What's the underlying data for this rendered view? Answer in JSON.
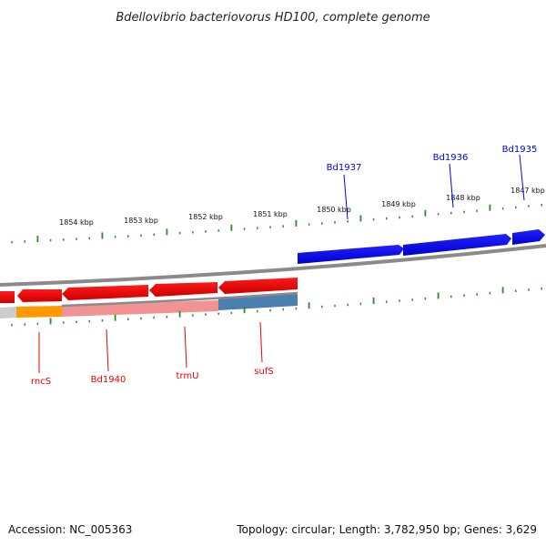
{
  "title": "Bdellovibrio bacteriovorus HD100, complete genome",
  "footer": {
    "accession": "Accession: NC_005363",
    "summary": "Topology: circular; Length: 3,782,950 bp; Genes: 3,629"
  },
  "ruler": {
    "unit": "kbp",
    "labels": [
      "1854 kbp",
      "1853 kbp",
      "1852 kbp",
      "1851 kbp",
      "1850 kbp",
      "1849 kbp",
      "1848 kbp",
      "1847 kbp"
    ]
  },
  "genes": {
    "forward": [
      {
        "name": "Bd1937",
        "color": "#0000ee"
      },
      {
        "name": "Bd1936",
        "color": "#0000ee"
      },
      {
        "name": "Bd1935",
        "color": "#0000ee"
      }
    ],
    "reverse": [
      {
        "name": "rncS",
        "color": "#ee0000"
      },
      {
        "name": "Bd1940",
        "color": "#ee0000"
      },
      {
        "name": "trmU",
        "color": "#ee0000"
      },
      {
        "name": "sufS",
        "color": "#ee0000"
      }
    ]
  },
  "colors": {
    "forward_strand": "#0000ee",
    "reverse_strand": "#ee0000",
    "tick_marks": "#2e8b2e",
    "backbone": "#888888",
    "rncS_band": "#ff9900",
    "sufS_band": "#4a7fb0",
    "reverse_band": "#f08080"
  }
}
